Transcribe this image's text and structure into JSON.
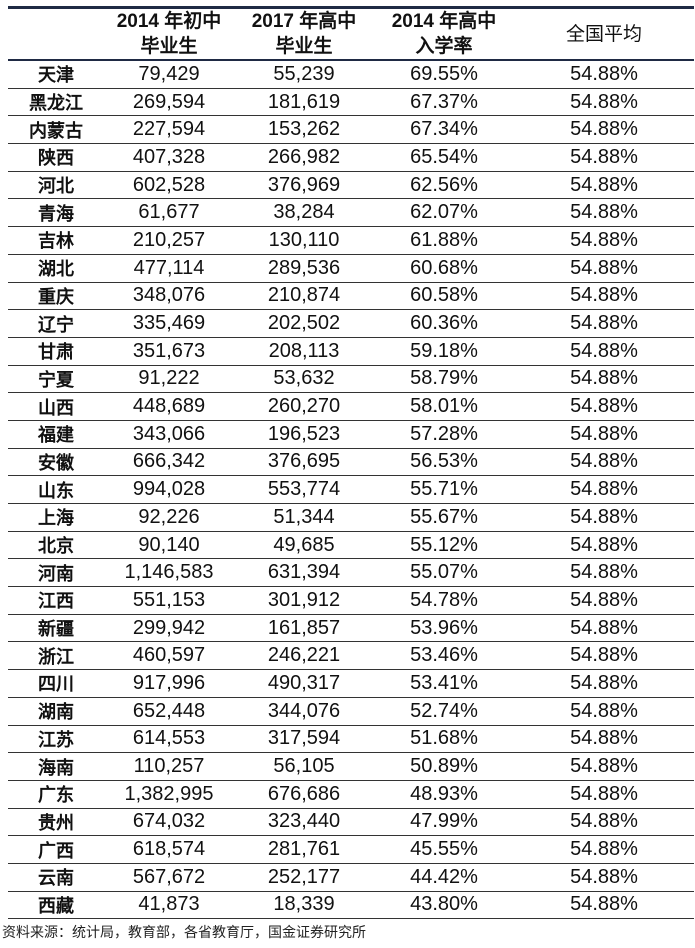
{
  "table": {
    "headers": [
      {
        "line1": "",
        "line2": ""
      },
      {
        "line1": "2014 年初中",
        "line2": "毕业生"
      },
      {
        "line1": "2017 年高中",
        "line2": "毕业生"
      },
      {
        "line1": "2014 年高中",
        "line2": "入学率"
      },
      {
        "line1": "全国平均",
        "line2": ""
      }
    ],
    "rows": [
      [
        "天津",
        "79,429",
        "55,239",
        "69.55%",
        "54.88%"
      ],
      [
        "黑龙江",
        "269,594",
        "181,619",
        "67.37%",
        "54.88%"
      ],
      [
        "内蒙古",
        "227,594",
        "153,262",
        "67.34%",
        "54.88%"
      ],
      [
        "陕西",
        "407,328",
        "266,982",
        "65.54%",
        "54.88%"
      ],
      [
        "河北",
        "602,528",
        "376,969",
        "62.56%",
        "54.88%"
      ],
      [
        "青海",
        "61,677",
        "38,284",
        "62.07%",
        "54.88%"
      ],
      [
        "吉林",
        "210,257",
        "130,110",
        "61.88%",
        "54.88%"
      ],
      [
        "湖北",
        "477,114",
        "289,536",
        "60.68%",
        "54.88%"
      ],
      [
        "重庆",
        "348,076",
        "210,874",
        "60.58%",
        "54.88%"
      ],
      [
        "辽宁",
        "335,469",
        "202,502",
        "60.36%",
        "54.88%"
      ],
      [
        "甘肃",
        "351,673",
        "208,113",
        "59.18%",
        "54.88%"
      ],
      [
        "宁夏",
        "91,222",
        "53,632",
        "58.79%",
        "54.88%"
      ],
      [
        "山西",
        "448,689",
        "260,270",
        "58.01%",
        "54.88%"
      ],
      [
        "福建",
        "343,066",
        "196,523",
        "57.28%",
        "54.88%"
      ],
      [
        "安徽",
        "666,342",
        "376,695",
        "56.53%",
        "54.88%"
      ],
      [
        "山东",
        "994,028",
        "553,774",
        "55.71%",
        "54.88%"
      ],
      [
        "上海",
        "92,226",
        "51,344",
        "55.67%",
        "54.88%"
      ],
      [
        "北京",
        "90,140",
        "49,685",
        "55.12%",
        "54.88%"
      ],
      [
        "河南",
        "1,146,583",
        "631,394",
        "55.07%",
        "54.88%"
      ],
      [
        "江西",
        "551,153",
        "301,912",
        "54.78%",
        "54.88%"
      ],
      [
        "新疆",
        "299,942",
        "161,857",
        "53.96%",
        "54.88%"
      ],
      [
        "浙江",
        "460,597",
        "246,221",
        "53.46%",
        "54.88%"
      ],
      [
        "四川",
        "917,996",
        "490,317",
        "53.41%",
        "54.88%"
      ],
      [
        "湖南",
        "652,448",
        "344,076",
        "52.74%",
        "54.88%"
      ],
      [
        "江苏",
        "614,553",
        "317,594",
        "51.68%",
        "54.88%"
      ],
      [
        "海南",
        "110,257",
        "56,105",
        "50.89%",
        "54.88%"
      ],
      [
        "广东",
        "1,382,995",
        "676,686",
        "48.93%",
        "54.88%"
      ],
      [
        "贵州",
        "674,032",
        "323,440",
        "47.99%",
        "54.88%"
      ],
      [
        "广西",
        "618,574",
        "281,761",
        "45.55%",
        "54.88%"
      ],
      [
        "云南",
        "567,672",
        "252,177",
        "44.42%",
        "54.88%"
      ],
      [
        "西藏",
        "41,873",
        "18,339",
        "43.80%",
        "54.88%"
      ]
    ]
  },
  "source": "资料来源：统计局，教育部，各省教育厅，国金证券研究所",
  "colors": {
    "header_rule": "#1f2a44"
  }
}
